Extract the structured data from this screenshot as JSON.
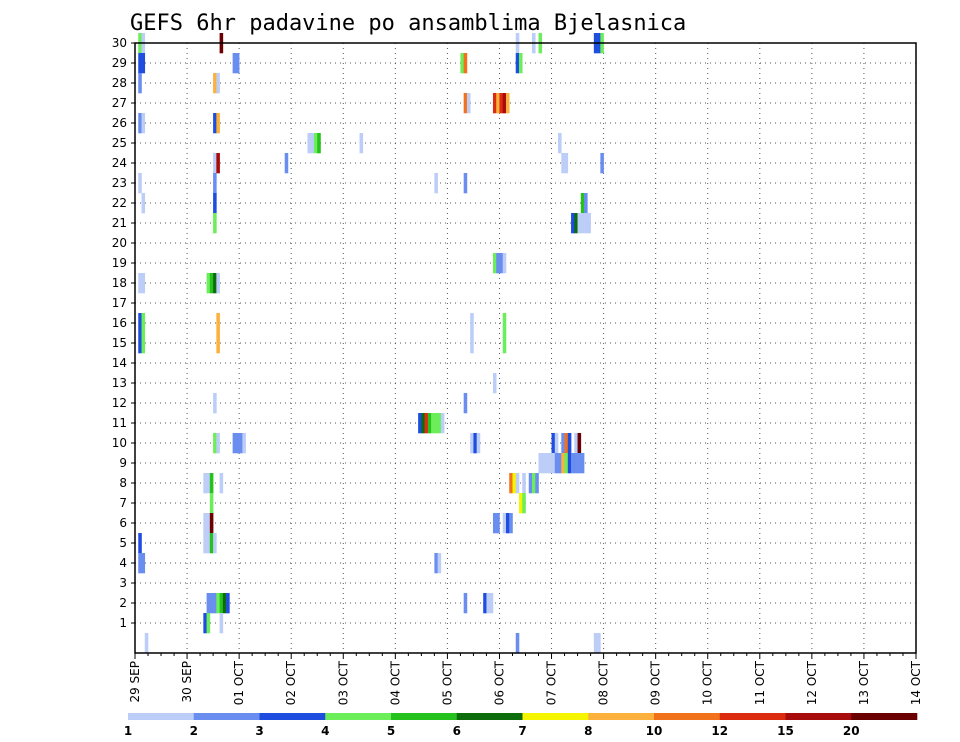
{
  "chart_data": {
    "type": "heatmap",
    "title": "GEFS 6hr padavine po ansamblima Bjelasnica",
    "x_ticks": [
      "29 SEP",
      "30 SEP",
      "01 OCT",
      "02 OCT",
      "03 OCT",
      "04 OCT",
      "05 OCT",
      "06 OCT",
      "07 OCT",
      "08 OCT",
      "09 OCT",
      "10 OCT",
      "11 OCT",
      "12 OCT",
      "13 OCT",
      "14 OCT"
    ],
    "y_ticks": [
      1,
      2,
      3,
      4,
      5,
      6,
      7,
      8,
      9,
      10,
      11,
      12,
      13,
      14,
      15,
      16,
      17,
      18,
      19,
      20,
      21,
      22,
      23,
      24,
      25,
      26,
      27,
      28,
      29,
      30
    ],
    "x_unit": "6-hour steps from 29 SEP 00Z",
    "grid": true,
    "colorbar": {
      "labels": [
        "1",
        "2",
        "3",
        "4",
        "5",
        "6",
        "7",
        "8",
        "10",
        "12",
        "15",
        "20"
      ],
      "colors": [
        "#bccdf7",
        "#6a8ef0",
        "#1f4de0",
        "#6cee5a",
        "#25c21d",
        "#0d6d0d",
        "#f5f500",
        "#fbb13b",
        "#f2711b",
        "#dc2c10",
        "#a80b0b",
        "#6a0000"
      ]
    },
    "cells": [
      [
        30,
        1,
        3
      ],
      [
        30,
        2,
        0
      ],
      [
        30,
        26,
        11
      ],
      [
        30,
        117,
        0
      ],
      [
        30,
        122,
        0
      ],
      [
        30,
        124,
        3
      ],
      [
        30,
        141,
        2
      ],
      [
        30,
        142,
        2
      ],
      [
        30,
        143,
        3
      ],
      [
        29,
        1,
        2
      ],
      [
        29,
        2,
        2
      ],
      [
        29,
        30,
        1
      ],
      [
        29,
        31,
        1
      ],
      [
        29,
        100,
        3
      ],
      [
        29,
        101,
        8
      ],
      [
        29,
        117,
        2
      ],
      [
        29,
        118,
        3
      ],
      [
        28,
        1,
        1
      ],
      [
        28,
        24,
        7
      ],
      [
        28,
        25,
        0
      ],
      [
        27,
        101,
        8
      ],
      [
        27,
        102,
        0
      ],
      [
        27,
        110,
        9
      ],
      [
        27,
        111,
        7
      ],
      [
        27,
        112,
        9
      ],
      [
        27,
        113,
        10
      ],
      [
        27,
        114,
        7
      ],
      [
        26,
        1,
        1
      ],
      [
        26,
        2,
        0
      ],
      [
        26,
        24,
        2
      ],
      [
        26,
        25,
        7
      ],
      [
        25,
        53,
        0
      ],
      [
        25,
        54,
        0
      ],
      [
        25,
        55,
        3
      ],
      [
        25,
        56,
        4
      ],
      [
        25,
        69,
        0
      ],
      [
        25,
        130,
        0
      ],
      [
        24,
        24,
        0
      ],
      [
        24,
        25,
        10
      ],
      [
        24,
        46,
        1
      ],
      [
        24,
        131,
        0
      ],
      [
        24,
        132,
        0
      ],
      [
        24,
        143,
        1
      ],
      [
        23,
        1,
        0
      ],
      [
        23,
        24,
        1
      ],
      [
        23,
        92,
        0
      ],
      [
        23,
        101,
        1
      ],
      [
        22,
        2,
        0
      ],
      [
        22,
        24,
        2
      ],
      [
        22,
        137,
        4
      ],
      [
        22,
        138,
        1
      ],
      [
        21,
        24,
        3
      ],
      [
        21,
        134,
        2
      ],
      [
        21,
        135,
        5
      ],
      [
        21,
        136,
        0
      ],
      [
        21,
        137,
        0
      ],
      [
        21,
        138,
        0
      ],
      [
        21,
        139,
        0
      ],
      [
        19,
        110,
        3
      ],
      [
        19,
        111,
        1
      ],
      [
        19,
        112,
        1
      ],
      [
        19,
        113,
        0
      ],
      [
        18,
        1,
        0
      ],
      [
        18,
        2,
        0
      ],
      [
        18,
        22,
        3
      ],
      [
        18,
        23,
        4
      ],
      [
        18,
        24,
        5
      ],
      [
        18,
        25,
        0
      ],
      [
        16,
        1,
        2
      ],
      [
        16,
        2,
        3
      ],
      [
        16,
        25,
        7
      ],
      [
        16,
        103,
        0
      ],
      [
        16,
        113,
        3
      ],
      [
        15,
        1,
        2
      ],
      [
        15,
        2,
        3
      ],
      [
        15,
        25,
        7
      ],
      [
        15,
        103,
        0
      ],
      [
        15,
        113,
        3
      ],
      [
        13,
        110,
        0
      ],
      [
        12,
        24,
        0
      ],
      [
        12,
        101,
        1
      ],
      [
        11,
        87,
        2
      ],
      [
        11,
        88,
        5
      ],
      [
        11,
        89,
        9
      ],
      [
        11,
        90,
        4
      ],
      [
        11,
        91,
        3
      ],
      [
        11,
        92,
        3
      ],
      [
        11,
        93,
        3
      ],
      [
        11,
        94,
        0
      ],
      [
        10,
        24,
        3
      ],
      [
        10,
        25,
        0
      ],
      [
        10,
        30,
        1
      ],
      [
        10,
        31,
        1
      ],
      [
        10,
        32,
        1
      ],
      [
        10,
        33,
        0
      ],
      [
        10,
        103,
        0
      ],
      [
        10,
        104,
        2
      ],
      [
        10,
        105,
        0
      ],
      [
        10,
        128,
        2
      ],
      [
        10,
        129,
        0
      ],
      [
        10,
        131,
        1
      ],
      [
        10,
        132,
        8
      ],
      [
        10,
        133,
        2
      ],
      [
        10,
        135,
        0
      ],
      [
        10,
        136,
        11
      ],
      [
        9,
        124,
        0
      ],
      [
        9,
        125,
        0
      ],
      [
        9,
        126,
        0
      ],
      [
        9,
        127,
        0
      ],
      [
        9,
        128,
        0
      ],
      [
        9,
        129,
        1
      ],
      [
        9,
        130,
        1
      ],
      [
        9,
        131,
        7
      ],
      [
        9,
        132,
        3
      ],
      [
        9,
        133,
        2
      ],
      [
        9,
        134,
        1
      ],
      [
        9,
        135,
        1
      ],
      [
        9,
        136,
        1
      ],
      [
        9,
        137,
        1
      ],
      [
        8,
        21,
        0
      ],
      [
        8,
        22,
        0
      ],
      [
        8,
        23,
        4
      ],
      [
        8,
        26,
        0
      ],
      [
        8,
        115,
        8
      ],
      [
        8,
        116,
        6
      ],
      [
        8,
        117,
        0
      ],
      [
        8,
        119,
        0
      ],
      [
        8,
        121,
        1
      ],
      [
        8,
        122,
        3
      ],
      [
        8,
        123,
        1
      ],
      [
        7,
        23,
        3
      ],
      [
        7,
        118,
        6
      ],
      [
        7,
        119,
        3
      ],
      [
        6,
        21,
        0
      ],
      [
        6,
        22,
        0
      ],
      [
        6,
        23,
        11
      ],
      [
        6,
        110,
        1
      ],
      [
        6,
        111,
        1
      ],
      [
        6,
        113,
        0
      ],
      [
        6,
        114,
        2
      ],
      [
        6,
        115,
        1
      ],
      [
        5,
        1,
        2
      ],
      [
        5,
        21,
        0
      ],
      [
        5,
        22,
        0
      ],
      [
        5,
        23,
        4
      ],
      [
        5,
        24,
        0
      ],
      [
        4,
        1,
        1
      ],
      [
        4,
        2,
        1
      ],
      [
        4,
        92,
        1
      ],
      [
        4,
        93,
        0
      ],
      [
        2,
        22,
        1
      ],
      [
        2,
        23,
        1
      ],
      [
        2,
        24,
        1
      ],
      [
        2,
        25,
        3
      ],
      [
        2,
        26,
        4
      ],
      [
        2,
        27,
        5
      ],
      [
        2,
        28,
        2
      ],
      [
        2,
        101,
        1
      ],
      [
        2,
        107,
        2
      ],
      [
        2,
        108,
        0
      ],
      [
        2,
        109,
        0
      ],
      [
        1,
        21,
        2
      ],
      [
        1,
        22,
        3
      ],
      [
        1,
        26,
        0
      ],
      [
        0,
        3,
        0
      ],
      [
        0,
        117,
        1
      ],
      [
        0,
        141,
        0
      ],
      [
        0,
        142,
        0
      ]
    ]
  }
}
